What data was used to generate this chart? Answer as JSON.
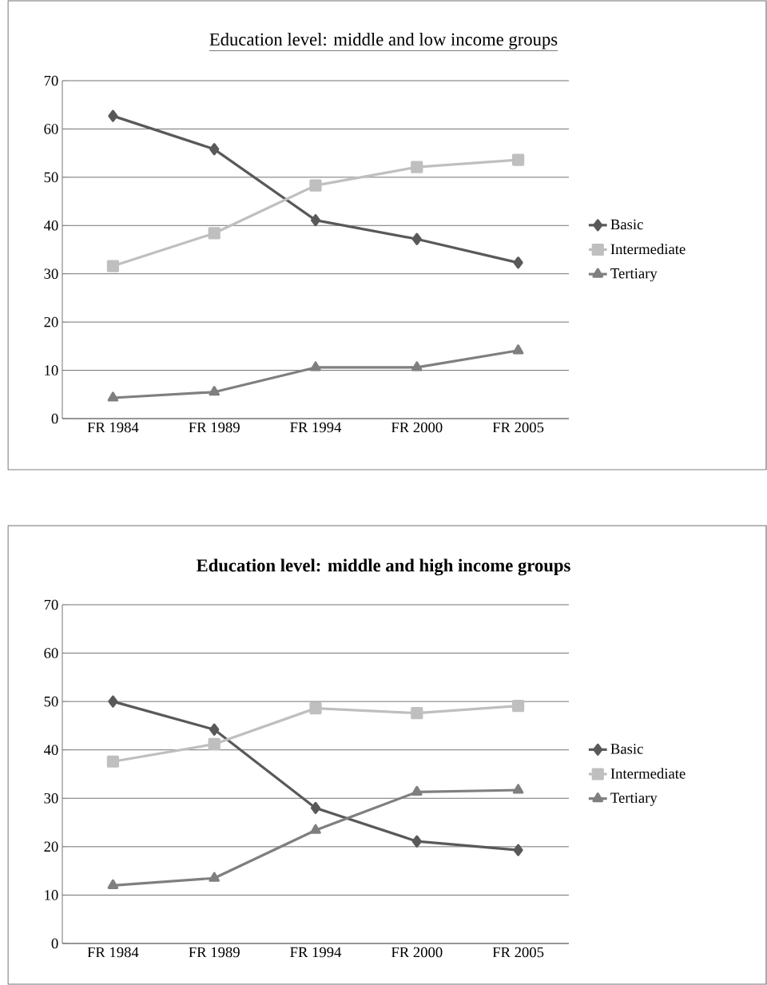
{
  "chart_data": [
    {
      "type": "line",
      "title": "Education level: middle and low income groups",
      "categories": [
        "FR 1984",
        "FR 1989",
        "FR 1994",
        "FR 2000",
        "FR 2005"
      ],
      "series": [
        {
          "name": "Basic",
          "color": "#595959",
          "marker": "diamond",
          "values": [
            62.7,
            55.8,
            41.1,
            37.2,
            32.3
          ]
        },
        {
          "name": "Intermediate",
          "color": "#bfbfbf",
          "marker": "square",
          "values": [
            31.6,
            38.4,
            48.3,
            52.1,
            53.6
          ]
        },
        {
          "name": "Tertiary",
          "color": "#7f7f7f",
          "marker": "triangle",
          "values": [
            4.3,
            5.5,
            10.6,
            10.6,
            14.1
          ]
        }
      ],
      "ylim": [
        0,
        70
      ],
      "yticks": [
        0,
        10,
        20,
        30,
        40,
        50,
        60,
        70
      ],
      "grid": "y",
      "legend": "right"
    },
    {
      "type": "line",
      "title": "Education level: middle and high income groups",
      "categories": [
        "FR 1984",
        "FR 1989",
        "FR 1994",
        "FR 2000",
        "FR 2005"
      ],
      "series": [
        {
          "name": "Basic",
          "color": "#595959",
          "marker": "diamond",
          "values": [
            50.0,
            44.2,
            28.0,
            21.1,
            19.3
          ]
        },
        {
          "name": "Intermediate",
          "color": "#bfbfbf",
          "marker": "square",
          "values": [
            37.6,
            41.2,
            48.6,
            47.6,
            49.1
          ]
        },
        {
          "name": "Tertiary",
          "color": "#7f7f7f",
          "marker": "triangle",
          "values": [
            12.0,
            13.5,
            23.4,
            31.3,
            31.7
          ]
        }
      ],
      "ylim": [
        0,
        70
      ],
      "yticks": [
        0,
        10,
        20,
        30,
        40,
        50,
        60,
        70
      ],
      "grid": "y",
      "legend": "right"
    }
  ]
}
